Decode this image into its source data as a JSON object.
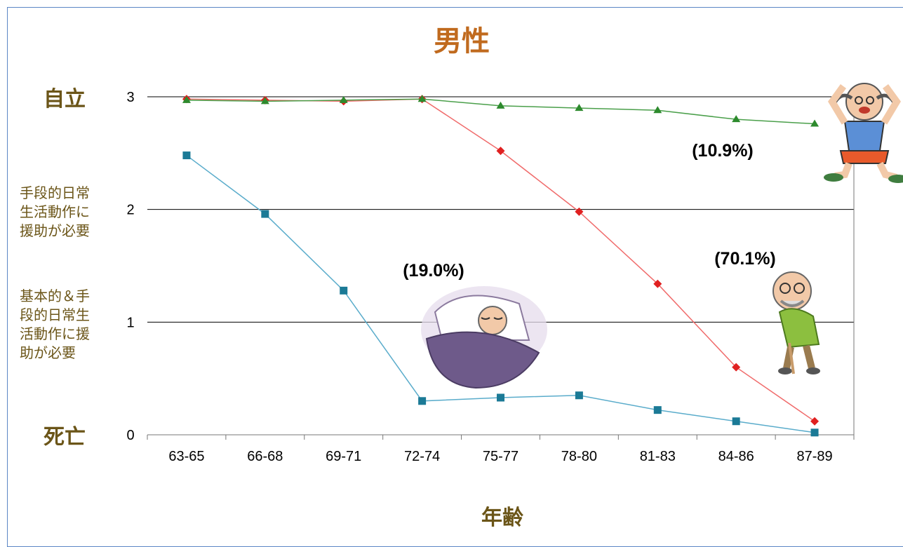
{
  "colors": {
    "title": "#c06a1e",
    "category_label": "#6b5518",
    "description_label": "#6b5518",
    "frame": "#5b86c5",
    "gridline": "#000000",
    "axis": "#777777"
  },
  "chart_data": {
    "type": "line",
    "title": "男性",
    "xlabel": "年齢",
    "ylabel": "",
    "ylim": [
      0,
      3
    ],
    "yticks": [
      0,
      1,
      2,
      3
    ],
    "grid": true,
    "categories": [
      "63-65",
      "66-68",
      "69-71",
      "72-74",
      "75-77",
      "78-80",
      "81-83",
      "84-86",
      "87-89"
    ],
    "category_labels": [
      {
        "text": "自立",
        "value": 3
      },
      {
        "text": "死亡",
        "value": 0
      }
    ],
    "description_labels": [
      {
        "lines": [
          "手段的日常",
          "生活動作に",
          "援助が必要"
        ],
        "value": 2
      },
      {
        "lines": [
          "基本的＆手",
          "段的日常生",
          "活動作に援",
          "助が必要"
        ],
        "value": 1
      }
    ],
    "series": [
      {
        "color": "#2d8a2d",
        "marker": "triangle",
        "line_color": "#4a9f4a",
        "values": [
          2.97,
          2.96,
          2.97,
          2.98,
          2.92,
          2.9,
          2.88,
          2.8,
          2.76
        ]
      },
      {
        "color": "#e02020",
        "marker": "diamond",
        "line_color": "#f06b6b",
        "values": [
          2.98,
          2.97,
          2.96,
          2.98,
          2.52,
          1.98,
          1.34,
          0.6,
          0.12
        ]
      },
      {
        "color": "#1b7a96",
        "marker": "square",
        "line_color": "#5aaccb",
        "values": [
          2.48,
          1.96,
          1.28,
          0.3,
          0.33,
          0.35,
          0.22,
          0.12,
          0.02
        ]
      }
    ],
    "annotations": [
      {
        "text": "(10.9%)",
        "series": 0
      },
      {
        "text": "(70.1%)",
        "series": 1
      },
      {
        "text": "(19.0%)",
        "series": 2
      }
    ]
  },
  "illustrations": [
    {
      "name": "energetic-elderly-man-illustration",
      "icon": "active-elderly-man"
    },
    {
      "name": "elderly-man-with-cane-illustration",
      "icon": "elderly-man-cane"
    },
    {
      "name": "bedridden-elderly-man-illustration",
      "icon": "bedridden-elderly"
    }
  ]
}
